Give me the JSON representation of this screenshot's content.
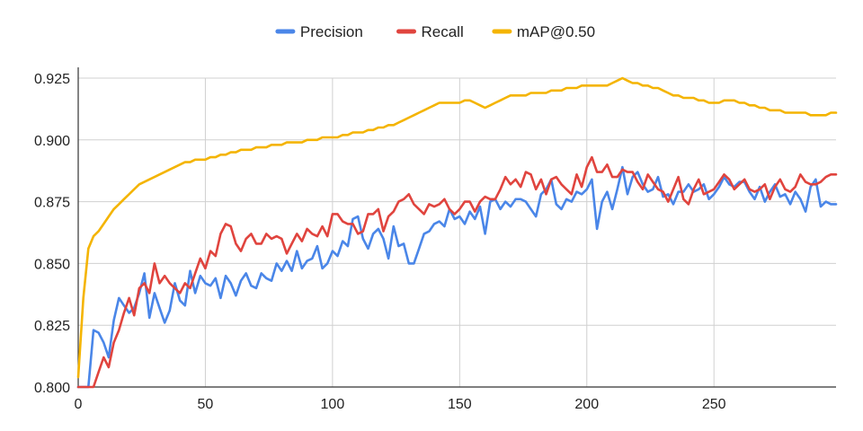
{
  "chart_data": {
    "type": "line",
    "title": "",
    "xlabel": "",
    "ylabel": "",
    "xlim": [
      0,
      298
    ],
    "ylim": [
      0.8,
      0.925
    ],
    "x_ticks": [
      0,
      50,
      100,
      150,
      200,
      250
    ],
    "x_tick_labels": [
      "0",
      "50",
      "100",
      "150",
      "200",
      "250"
    ],
    "y_ticks": [
      0.8,
      0.825,
      0.85,
      0.875,
      0.9,
      0.925
    ],
    "y_tick_labels": [
      "0.800",
      "0.825",
      "0.850",
      "0.875",
      "0.900",
      "0.925"
    ],
    "grid": true,
    "legend_position": "top-center",
    "x": [
      0,
      2,
      4,
      6,
      8,
      10,
      12,
      14,
      16,
      18,
      20,
      22,
      24,
      26,
      28,
      30,
      32,
      34,
      36,
      38,
      40,
      42,
      44,
      46,
      48,
      50,
      52,
      54,
      56,
      58,
      60,
      62,
      64,
      66,
      68,
      70,
      72,
      74,
      76,
      78,
      80,
      82,
      84,
      86,
      88,
      90,
      92,
      94,
      96,
      98,
      100,
      102,
      104,
      106,
      108,
      110,
      112,
      114,
      116,
      118,
      120,
      122,
      124,
      126,
      128,
      130,
      132,
      134,
      136,
      138,
      140,
      142,
      144,
      146,
      148,
      150,
      152,
      154,
      156,
      158,
      160,
      162,
      164,
      166,
      168,
      170,
      172,
      174,
      176,
      178,
      180,
      182,
      184,
      186,
      188,
      190,
      192,
      194,
      196,
      198,
      200,
      202,
      204,
      206,
      208,
      210,
      212,
      214,
      216,
      218,
      220,
      222,
      224,
      226,
      228,
      230,
      232,
      234,
      236,
      238,
      240,
      242,
      244,
      246,
      248,
      250,
      252,
      254,
      256,
      258,
      260,
      262,
      264,
      266,
      268,
      270,
      272,
      274,
      276,
      278,
      280,
      282,
      284,
      286,
      288,
      290,
      292,
      294,
      296,
      298
    ],
    "series": [
      {
        "name": "Precision",
        "color": "#4a86e8",
        "values": [
          0.8,
          0.8,
          0.8,
          0.823,
          0.822,
          0.818,
          0.812,
          0.827,
          0.836,
          0.833,
          0.83,
          0.832,
          0.838,
          0.846,
          0.828,
          0.838,
          0.832,
          0.826,
          0.831,
          0.842,
          0.835,
          0.833,
          0.847,
          0.838,
          0.845,
          0.842,
          0.841,
          0.844,
          0.836,
          0.845,
          0.842,
          0.837,
          0.843,
          0.846,
          0.841,
          0.84,
          0.846,
          0.844,
          0.843,
          0.85,
          0.847,
          0.851,
          0.847,
          0.855,
          0.848,
          0.851,
          0.852,
          0.857,
          0.848,
          0.85,
          0.855,
          0.853,
          0.859,
          0.857,
          0.868,
          0.869,
          0.86,
          0.856,
          0.862,
          0.864,
          0.86,
          0.852,
          0.865,
          0.857,
          0.858,
          0.85,
          0.85,
          0.856,
          0.862,
          0.863,
          0.866,
          0.867,
          0.865,
          0.872,
          0.868,
          0.869,
          0.866,
          0.871,
          0.868,
          0.873,
          0.862,
          0.875,
          0.876,
          0.872,
          0.875,
          0.873,
          0.876,
          0.876,
          0.875,
          0.872,
          0.869,
          0.878,
          0.88,
          0.884,
          0.874,
          0.872,
          0.876,
          0.875,
          0.879,
          0.878,
          0.88,
          0.884,
          0.864,
          0.875,
          0.879,
          0.872,
          0.88,
          0.889,
          0.878,
          0.885,
          0.887,
          0.882,
          0.879,
          0.88,
          0.885,
          0.877,
          0.878,
          0.874,
          0.879,
          0.879,
          0.882,
          0.879,
          0.88,
          0.882,
          0.876,
          0.878,
          0.881,
          0.885,
          0.882,
          0.881,
          0.883,
          0.883,
          0.879,
          0.876,
          0.881,
          0.875,
          0.879,
          0.882,
          0.877,
          0.878,
          0.874,
          0.879,
          0.876,
          0.871,
          0.881,
          0.884,
          0.873,
          0.875,
          0.874,
          0.874
        ]
      },
      {
        "name": "Recall",
        "color": "#e0443e",
        "values": [
          0.8,
          0.8,
          0.8,
          0.8,
          0.806,
          0.812,
          0.808,
          0.818,
          0.823,
          0.83,
          0.836,
          0.829,
          0.84,
          0.842,
          0.838,
          0.85,
          0.842,
          0.845,
          0.842,
          0.84,
          0.838,
          0.842,
          0.84,
          0.846,
          0.852,
          0.848,
          0.855,
          0.853,
          0.862,
          0.866,
          0.865,
          0.858,
          0.855,
          0.86,
          0.862,
          0.858,
          0.858,
          0.862,
          0.86,
          0.861,
          0.86,
          0.854,
          0.858,
          0.862,
          0.859,
          0.864,
          0.862,
          0.861,
          0.865,
          0.861,
          0.87,
          0.87,
          0.867,
          0.866,
          0.866,
          0.862,
          0.863,
          0.87,
          0.87,
          0.872,
          0.863,
          0.869,
          0.871,
          0.875,
          0.876,
          0.878,
          0.874,
          0.872,
          0.87,
          0.874,
          0.873,
          0.874,
          0.876,
          0.872,
          0.87,
          0.872,
          0.875,
          0.875,
          0.871,
          0.875,
          0.877,
          0.876,
          0.876,
          0.88,
          0.885,
          0.882,
          0.884,
          0.881,
          0.887,
          0.886,
          0.88,
          0.884,
          0.878,
          0.884,
          0.885,
          0.882,
          0.88,
          0.878,
          0.886,
          0.881,
          0.889,
          0.893,
          0.887,
          0.887,
          0.89,
          0.885,
          0.885,
          0.888,
          0.887,
          0.887,
          0.883,
          0.88,
          0.886,
          0.883,
          0.88,
          0.879,
          0.875,
          0.88,
          0.885,
          0.876,
          0.874,
          0.88,
          0.884,
          0.878,
          0.879,
          0.88,
          0.883,
          0.886,
          0.884,
          0.88,
          0.882,
          0.884,
          0.88,
          0.879,
          0.88,
          0.882,
          0.876,
          0.881,
          0.884,
          0.88,
          0.879,
          0.881,
          0.886,
          0.883,
          0.882,
          0.882,
          0.883,
          0.885,
          0.886,
          0.886
        ]
      },
      {
        "name": "mAP@0.50",
        "color": "#f4b400",
        "values": [
          0.804,
          0.836,
          0.856,
          0.861,
          0.863,
          0.866,
          0.869,
          0.872,
          0.874,
          0.876,
          0.878,
          0.88,
          0.882,
          0.883,
          0.884,
          0.885,
          0.886,
          0.887,
          0.888,
          0.889,
          0.89,
          0.891,
          0.891,
          0.892,
          0.892,
          0.892,
          0.893,
          0.893,
          0.894,
          0.894,
          0.895,
          0.895,
          0.896,
          0.896,
          0.896,
          0.897,
          0.897,
          0.897,
          0.898,
          0.898,
          0.898,
          0.899,
          0.899,
          0.899,
          0.899,
          0.9,
          0.9,
          0.9,
          0.901,
          0.901,
          0.901,
          0.901,
          0.902,
          0.902,
          0.903,
          0.903,
          0.903,
          0.904,
          0.904,
          0.905,
          0.905,
          0.906,
          0.906,
          0.907,
          0.908,
          0.909,
          0.91,
          0.911,
          0.912,
          0.913,
          0.914,
          0.915,
          0.915,
          0.915,
          0.915,
          0.915,
          0.916,
          0.916,
          0.915,
          0.914,
          0.913,
          0.914,
          0.915,
          0.916,
          0.917,
          0.918,
          0.918,
          0.918,
          0.918,
          0.919,
          0.919,
          0.919,
          0.919,
          0.92,
          0.92,
          0.92,
          0.921,
          0.921,
          0.921,
          0.922,
          0.922,
          0.922,
          0.922,
          0.922,
          0.922,
          0.923,
          0.924,
          0.925,
          0.924,
          0.923,
          0.923,
          0.922,
          0.922,
          0.921,
          0.921,
          0.92,
          0.919,
          0.918,
          0.918,
          0.917,
          0.917,
          0.917,
          0.916,
          0.916,
          0.915,
          0.915,
          0.915,
          0.916,
          0.916,
          0.916,
          0.915,
          0.915,
          0.914,
          0.914,
          0.913,
          0.913,
          0.912,
          0.912,
          0.912,
          0.911,
          0.911,
          0.911,
          0.911,
          0.911,
          0.91,
          0.91,
          0.91,
          0.91,
          0.911,
          0.911
        ]
      }
    ]
  }
}
